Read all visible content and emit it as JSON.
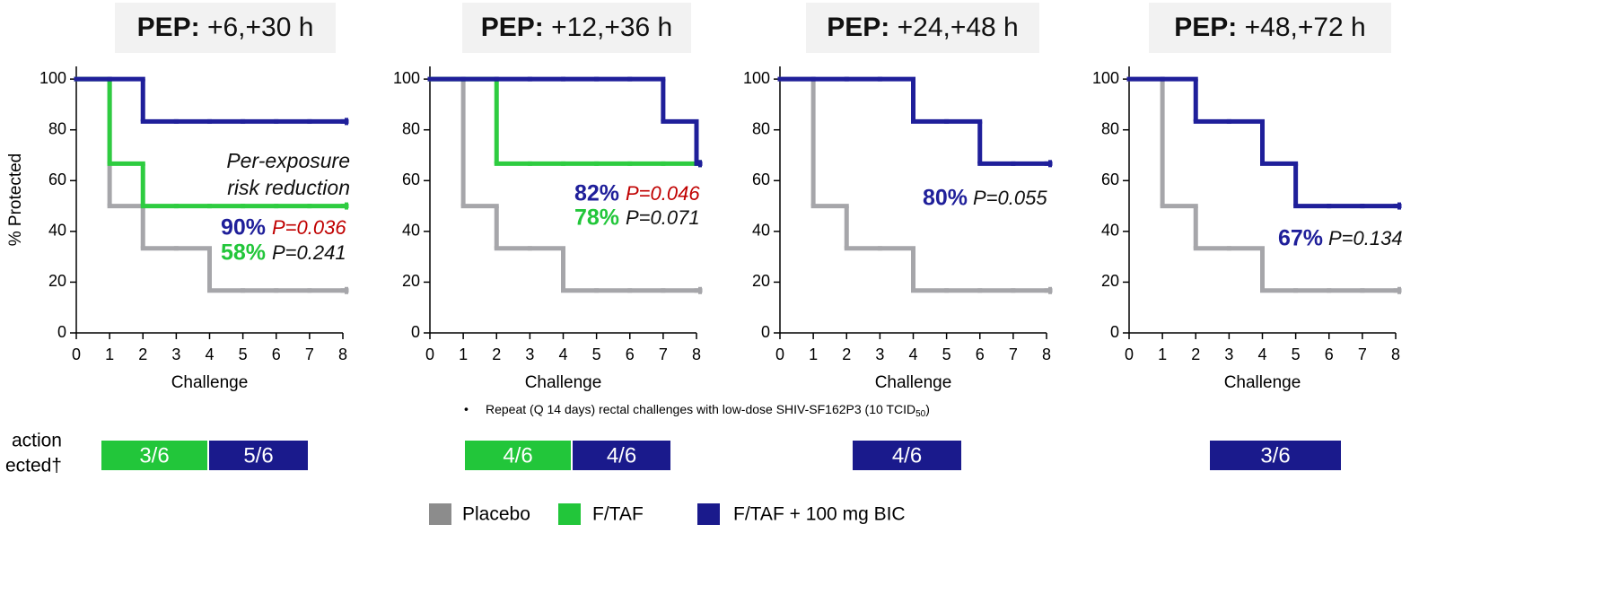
{
  "chart_data": [
    {
      "type": "line",
      "step": true,
      "title_bold": "PEP:",
      "title": "+6,+30 h",
      "xlabel": "Challenge",
      "ylabel": "% Protected",
      "x": [
        0,
        1,
        2,
        3,
        4,
        5,
        6,
        7,
        8
      ],
      "xlim": [
        0,
        8
      ],
      "xticks": [
        0,
        1,
        2,
        3,
        4,
        5,
        6,
        7,
        8
      ],
      "ylim": [
        0,
        105
      ],
      "yticks": [
        0,
        20,
        40,
        60,
        80,
        100
      ],
      "series": [
        {
          "color": "#a6a6aa",
          "values": [
            100,
            50,
            33.3,
            33.3,
            16.7,
            16.7,
            16.7,
            16.7,
            16.7
          ]
        },
        {
          "color": "#2ecc40",
          "values": [
            100,
            66.7,
            50,
            50,
            50,
            50,
            50,
            50,
            50
          ]
        },
        {
          "color": "#1f1f9a",
          "values": [
            100,
            100,
            83.3,
            83.3,
            83.3,
            83.3,
            83.3,
            83.3,
            83.3
          ]
        }
      ],
      "note": [
        "Per-exposure",
        "risk reduction"
      ],
      "annotations": [
        {
          "pct": "90%",
          "color": "#1f1f9a",
          "p": "P=0.036",
          "p_color": "#c00000"
        },
        {
          "pct": "58%",
          "color": "#22c63a",
          "p": "P=0.241",
          "p_color": "#111111"
        }
      ],
      "protected": [
        {
          "text": "3/6",
          "color": "#22c63a"
        },
        {
          "text": "5/6",
          "color": "#1a1a8c"
        }
      ]
    },
    {
      "type": "line",
      "step": true,
      "title_bold": "PEP:",
      "title": "+12,+36 h",
      "xlabel": "Challenge",
      "x": [
        0,
        1,
        2,
        3,
        4,
        5,
        6,
        7,
        8
      ],
      "xlim": [
        0,
        8
      ],
      "xticks": [
        0,
        1,
        2,
        3,
        4,
        5,
        6,
        7,
        8
      ],
      "ylim": [
        0,
        105
      ],
      "yticks": [
        0,
        20,
        40,
        60,
        80,
        100
      ],
      "series": [
        {
          "color": "#a6a6aa",
          "values": [
            100,
            50,
            33.3,
            33.3,
            16.7,
            16.7,
            16.7,
            16.7,
            16.7
          ]
        },
        {
          "color": "#2ecc40",
          "values": [
            100,
            100,
            66.7,
            66.7,
            66.7,
            66.7,
            66.7,
            66.7,
            66.7
          ]
        },
        {
          "color": "#1f1f9a",
          "values": [
            100,
            100,
            100,
            100,
            100,
            100,
            100,
            83.3,
            66.7
          ]
        }
      ],
      "annotations": [
        {
          "pct": "82%",
          "color": "#1f1f9a",
          "p": "P=0.046",
          "p_color": "#c00000"
        },
        {
          "pct": "78%",
          "color": "#22c63a",
          "p": "P=0.071",
          "p_color": "#111111"
        }
      ],
      "protected": [
        {
          "text": "4/6",
          "color": "#22c63a"
        },
        {
          "text": "4/6",
          "color": "#1a1a8c"
        }
      ]
    },
    {
      "type": "line",
      "step": true,
      "title_bold": "PEP:",
      "title": "+24,+48 h",
      "xlabel": "Challenge",
      "x": [
        0,
        1,
        2,
        3,
        4,
        5,
        6,
        7,
        8
      ],
      "xlim": [
        0,
        8
      ],
      "xticks": [
        0,
        1,
        2,
        3,
        4,
        5,
        6,
        7,
        8
      ],
      "ylim": [
        0,
        105
      ],
      "yticks": [
        0,
        20,
        40,
        60,
        80,
        100
      ],
      "series": [
        {
          "color": "#a6a6aa",
          "values": [
            100,
            50,
            33.3,
            33.3,
            16.7,
            16.7,
            16.7,
            16.7,
            16.7
          ]
        },
        {
          "color": "#1f1f9a",
          "values": [
            100,
            100,
            100,
            100,
            83.3,
            83.3,
            66.7,
            66.7,
            66.7
          ]
        }
      ],
      "annotations": [
        {
          "pct": "80%",
          "color": "#1f1f9a",
          "p": "P=0.055",
          "p_color": "#111111"
        }
      ],
      "protected": [
        {
          "text": "4/6",
          "color": "#1a1a8c"
        }
      ]
    },
    {
      "type": "line",
      "step": true,
      "title_bold": "PEP:",
      "title": "+48,+72 h",
      "xlabel": "Challenge",
      "x": [
        0,
        1,
        2,
        3,
        4,
        5,
        6,
        7,
        8
      ],
      "xlim": [
        0,
        8
      ],
      "xticks": [
        0,
        1,
        2,
        3,
        4,
        5,
        6,
        7,
        8
      ],
      "ylim": [
        0,
        105
      ],
      "yticks": [
        0,
        20,
        40,
        60,
        80,
        100
      ],
      "series": [
        {
          "color": "#a6a6aa",
          "values": [
            100,
            50,
            33.3,
            33.3,
            16.7,
            16.7,
            16.7,
            16.7,
            16.7
          ]
        },
        {
          "color": "#1f1f9a",
          "values": [
            100,
            100,
            83.3,
            83.3,
            66.7,
            50,
            50,
            50,
            50
          ]
        }
      ],
      "annotations": [
        {
          "pct": "67%",
          "color": "#1f1f9a",
          "p": "P=0.134",
          "p_color": "#111111"
        }
      ],
      "protected": [
        {
          "text": "3/6",
          "color": "#1a1a8c"
        }
      ]
    }
  ],
  "infection_label": [
    "action",
    "ected†"
  ],
  "footnote": {
    "bullet": "•",
    "text": "Repeat (Q 14 days) rectal challenges with low-dose SHIV-SF162P3 (10 TCID",
    "sub": "50",
    "tail": ")"
  },
  "legend": [
    {
      "name": "Placebo",
      "color": "#8c8c8c"
    },
    {
      "name": "F/TAF",
      "color": "#22c63a"
    },
    {
      "name": "F/TAF + 100 mg BIC",
      "color": "#1a1a8c"
    }
  ]
}
